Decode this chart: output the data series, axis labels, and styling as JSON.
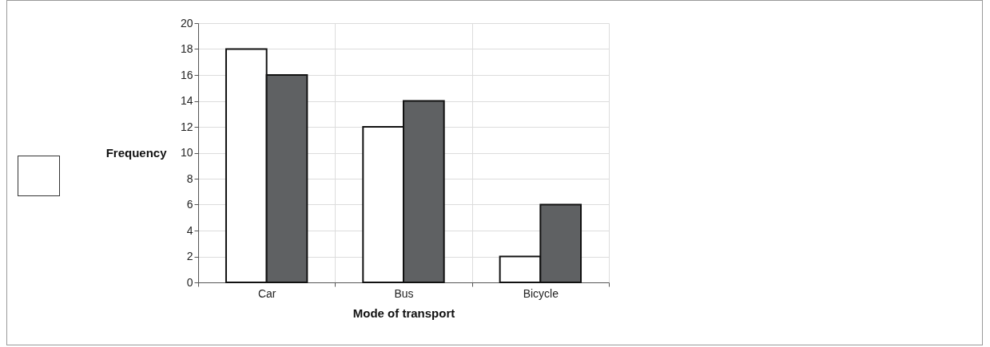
{
  "chart_data": {
    "type": "bar",
    "xlabel": "Mode of transport",
    "ylabel": "Frequency",
    "categories": [
      "Car",
      "Bus",
      "Bicycle"
    ],
    "series": [
      {
        "color": "#ffffff",
        "values": [
          18,
          12,
          2
        ]
      },
      {
        "color": "#5f6163",
        "values": [
          16,
          14,
          6
        ]
      }
    ],
    "ylim": [
      0,
      20
    ],
    "yticks": [
      0,
      2,
      4,
      6,
      8,
      10,
      12,
      14,
      16,
      18,
      20
    ],
    "grid": true,
    "legend": false
  }
}
